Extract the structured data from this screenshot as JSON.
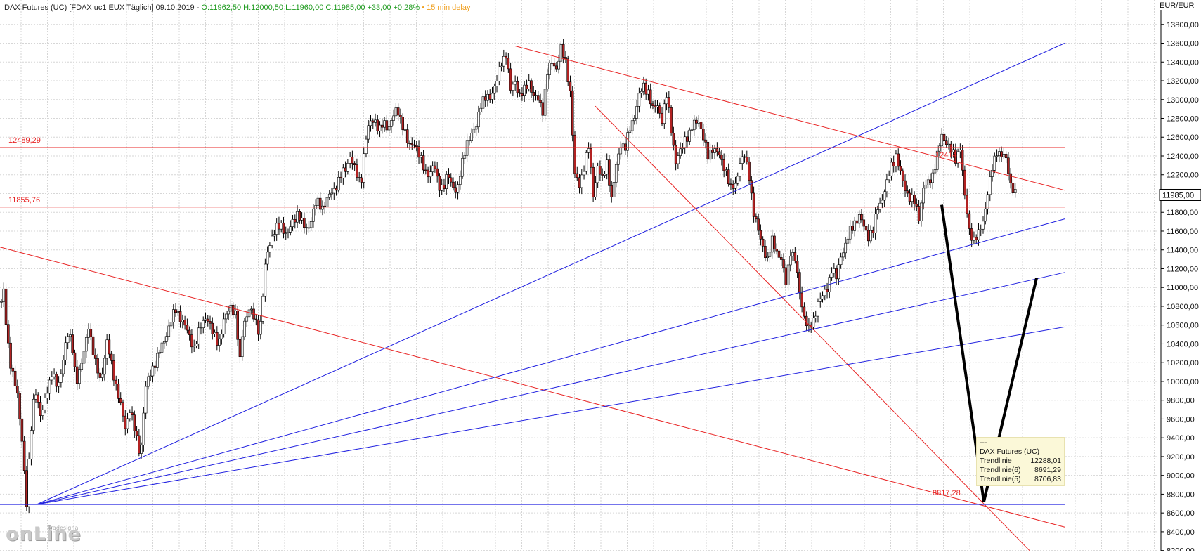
{
  "header": {
    "title": "DAX Futures (UC) [FDAX uc1 EUX Täglich] 09.10.2019 -",
    "ohlc": "O:11962,50 H:12000,50 L:11960,00 C:11985,00 +33,00 +0,28%",
    "delay": "• 15 min delay"
  },
  "colors": {
    "candle_up": "#ffffff",
    "candle_down": "#b22222",
    "wick": "#000000",
    "red_line": "#e82424",
    "blue_line": "#2020e0",
    "grid": "#d6d6d6",
    "projection": "#000000"
  },
  "chart_data": {
    "type": "candlestick",
    "y_axis_title": "EUR/EUR",
    "y_ticks": [
      8200,
      8400,
      8600,
      8800,
      9000,
      9200,
      9400,
      9600,
      9800,
      10000,
      10200,
      10400,
      10600,
      10800,
      11000,
      11200,
      11400,
      11600,
      11800,
      12000,
      12200,
      12400,
      12600,
      12800,
      13000,
      13200,
      13400,
      13600,
      13800
    ],
    "y_tick_labels": [
      "8200,00",
      "8400,00",
      "8600,00",
      "8800,00",
      "9000,00",
      "9200,00",
      "9400,00",
      "9600,00",
      "9800,00",
      "10000,00",
      "10200,00",
      "10400,00",
      "10600,00",
      "10800,00",
      "11000,00",
      "11200,00",
      "11400,00",
      "11600,00",
      "11800,00",
      "12000,00",
      "12200,00",
      "12400,00",
      "12600,00",
      "12800,00",
      "13000,00",
      "13200,00",
      "13400,00",
      "13600,00",
      "13800,00"
    ],
    "ylim": [
      8190,
      14060
    ],
    "grid": true,
    "last_price": 11985,
    "last_price_label": "11985,00",
    "price_path": [
      [
        0,
        10850
      ],
      [
        3,
        10950
      ],
      [
        7,
        10500
      ],
      [
        12,
        10200
      ],
      [
        20,
        9900
      ],
      [
        28,
        9300
      ],
      [
        33,
        8700
      ],
      [
        38,
        9400
      ],
      [
        44,
        9950
      ],
      [
        52,
        9600
      ],
      [
        60,
        9900
      ],
      [
        66,
        10100
      ],
      [
        74,
        9900
      ],
      [
        80,
        10200
      ],
      [
        86,
        10500
      ],
      [
        92,
        10400
      ],
      [
        98,
        10000
      ],
      [
        106,
        10200
      ],
      [
        114,
        10600
      ],
      [
        122,
        10200
      ],
      [
        130,
        10000
      ],
      [
        138,
        10400
      ],
      [
        146,
        10100
      ],
      [
        154,
        9800
      ],
      [
        162,
        9500
      ],
      [
        168,
        9700
      ],
      [
        176,
        9400
      ],
      [
        182,
        9200
      ],
      [
        188,
        9900
      ],
      [
        196,
        10100
      ],
      [
        204,
        10250
      ],
      [
        212,
        10400
      ],
      [
        220,
        10600
      ],
      [
        228,
        10750
      ],
      [
        236,
        10650
      ],
      [
        244,
        10500
      ],
      [
        252,
        10350
      ],
      [
        260,
        10550
      ],
      [
        268,
        10700
      ],
      [
        276,
        10500
      ],
      [
        284,
        10400
      ],
      [
        292,
        10650
      ],
      [
        300,
        10800
      ],
      [
        306,
        10700
      ],
      [
        312,
        10200
      ],
      [
        316,
        10600
      ],
      [
        324,
        10750
      ],
      [
        332,
        10650
      ],
      [
        338,
        10500
      ],
      [
        342,
        10900
      ],
      [
        346,
        11300
      ],
      [
        352,
        11500
      ],
      [
        358,
        11600
      ],
      [
        366,
        11650
      ],
      [
        374,
        11550
      ],
      [
        382,
        11700
      ],
      [
        388,
        11800
      ],
      [
        394,
        11650
      ],
      [
        400,
        11600
      ],
      [
        406,
        11750
      ],
      [
        412,
        11900
      ],
      [
        420,
        11850
      ],
      [
        428,
        11950
      ],
      [
        436,
        12050
      ],
      [
        442,
        12150
      ],
      [
        450,
        12250
      ],
      [
        456,
        12400
      ],
      [
        464,
        12200
      ],
      [
        470,
        12100
      ],
      [
        476,
        12550
      ],
      [
        482,
        12750
      ],
      [
        488,
        12800
      ],
      [
        494,
        12650
      ],
      [
        500,
        12750
      ],
      [
        506,
        12700
      ],
      [
        512,
        12800
      ],
      [
        518,
        12900
      ],
      [
        526,
        12700
      ],
      [
        532,
        12500
      ],
      [
        540,
        12550
      ],
      [
        546,
        12400
      ],
      [
        554,
        12250
      ],
      [
        560,
        12200
      ],
      [
        566,
        12300
      ],
      [
        572,
        12100
      ],
      [
        578,
        12050
      ],
      [
        584,
        12200
      ],
      [
        590,
        12100
      ],
      [
        596,
        12000
      ],
      [
        602,
        12300
      ],
      [
        608,
        12550
      ],
      [
        614,
        12600
      ],
      [
        620,
        12700
      ],
      [
        626,
        12950
      ],
      [
        632,
        13000
      ],
      [
        640,
        13050
      ],
      [
        648,
        13200
      ],
      [
        654,
        13400
      ],
      [
        660,
        13500
      ],
      [
        666,
        13100
      ],
      [
        672,
        13200
      ],
      [
        678,
        13050
      ],
      [
        684,
        13100
      ],
      [
        690,
        13200
      ],
      [
        696,
        13050
      ],
      [
        702,
        13000
      ],
      [
        708,
        12900
      ],
      [
        714,
        13300
      ],
      [
        720,
        13400
      ],
      [
        726,
        13350
      ],
      [
        732,
        13550
      ],
      [
        738,
        13400
      ],
      [
        744,
        13100
      ],
      [
        750,
        12200
      ],
      [
        756,
        12100
      ],
      [
        762,
        12300
      ],
      [
        768,
        12500
      ],
      [
        774,
        12000
      ],
      [
        780,
        12300
      ],
      [
        786,
        12150
      ],
      [
        792,
        12350
      ],
      [
        798,
        11950
      ],
      [
        804,
        12300
      ],
      [
        810,
        12550
      ],
      [
        816,
        12500
      ],
      [
        822,
        12700
      ],
      [
        828,
        12850
      ],
      [
        834,
        13050
      ],
      [
        840,
        13150
      ],
      [
        846,
        13100
      ],
      [
        852,
        12900
      ],
      [
        858,
        12950
      ],
      [
        864,
        12800
      ],
      [
        870,
        13050
      ],
      [
        876,
        12700
      ],
      [
        882,
        12350
      ],
      [
        888,
        12450
      ],
      [
        894,
        12600
      ],
      [
        900,
        12650
      ],
      [
        906,
        12750
      ],
      [
        912,
        12800
      ],
      [
        918,
        12600
      ],
      [
        924,
        12400
      ],
      [
        930,
        12500
      ],
      [
        936,
        12450
      ],
      [
        942,
        12350
      ],
      [
        948,
        12250
      ],
      [
        954,
        12050
      ],
      [
        960,
        12100
      ],
      [
        966,
        12350
      ],
      [
        972,
        12400
      ],
      [
        978,
        12200
      ],
      [
        984,
        11800
      ],
      [
        990,
        11600
      ],
      [
        996,
        11450
      ],
      [
        1002,
        11300
      ],
      [
        1008,
        11500
      ],
      [
        1014,
        11400
      ],
      [
        1020,
        11300
      ],
      [
        1026,
        11050
      ],
      [
        1032,
        11400
      ],
      [
        1038,
        11300
      ],
      [
        1044,
        10950
      ],
      [
        1050,
        10700
      ],
      [
        1056,
        10550
      ],
      [
        1062,
        10650
      ],
      [
        1068,
        10850
      ],
      [
        1074,
        10900
      ],
      [
        1080,
        11000
      ],
      [
        1086,
        11200
      ],
      [
        1092,
        11100
      ],
      [
        1098,
        11350
      ],
      [
        1104,
        11450
      ],
      [
        1110,
        11600
      ],
      [
        1116,
        11700
      ],
      [
        1122,
        11750
      ],
      [
        1128,
        11650
      ],
      [
        1134,
        11550
      ],
      [
        1140,
        11600
      ],
      [
        1146,
        11850
      ],
      [
        1152,
        11950
      ],
      [
        1158,
        12100
      ],
      [
        1164,
        12300
      ],
      [
        1170,
        12400
      ],
      [
        1176,
        12200
      ],
      [
        1182,
        12050
      ],
      [
        1188,
        11950
      ],
      [
        1194,
        11900
      ],
      [
        1200,
        11750
      ],
      [
        1206,
        12050
      ],
      [
        1212,
        12100
      ],
      [
        1218,
        12200
      ],
      [
        1224,
        12400
      ],
      [
        1230,
        12600
      ],
      [
        1236,
        12550
      ],
      [
        1242,
        12450
      ],
      [
        1248,
        12350
      ],
      [
        1254,
        12500
      ],
      [
        1260,
        11950
      ],
      [
        1266,
        11600
      ],
      [
        1272,
        11500
      ],
      [
        1278,
        11550
      ],
      [
        1284,
        11700
      ],
      [
        1290,
        12000
      ],
      [
        1296,
        12250
      ],
      [
        1302,
        12450
      ],
      [
        1308,
        12400
      ],
      [
        1314,
        12350
      ],
      [
        1320,
        12100
      ],
      [
        1326,
        11985
      ]
    ],
    "red_lines": [
      {
        "x": [
          0,
          1515
        ],
        "y": [
          12489.29,
          12489.29
        ],
        "label": "12489,29"
      },
      {
        "x": [
          0,
          1515
        ],
        "y": [
          11855.76,
          11855.76
        ],
        "label": "11855,76"
      },
      {
        "x": [
          733,
          1515
        ],
        "y": [
          13570,
          12035
        ]
      },
      {
        "x": [
          0,
          1515
        ],
        "y": [
          11430,
          8450
        ]
      },
      {
        "x": [
          847,
          1465
        ],
        "y": [
          12930,
          8200
        ]
      }
    ],
    "blue_lines": [
      {
        "x": [
          0,
          1515
        ],
        "y": [
          8690,
          8690
        ]
      },
      {
        "x": [
          52,
          1515
        ],
        "y": [
          8690,
          13600
        ]
      },
      {
        "x": [
          52,
          1515
        ],
        "y": [
          8690,
          11730
        ]
      },
      {
        "x": [
          52,
          1515
        ],
        "y": [
          8690,
          11160
        ]
      },
      {
        "x": [
          52,
          1515
        ],
        "y": [
          8690,
          10580
        ]
      }
    ],
    "projection": {
      "x": [
        1340,
        1400,
        1475
      ],
      "y": [
        11880,
        8720,
        11100
      ]
    },
    "annotations": [
      {
        "text": "12414",
        "x": 1331,
        "y": 12414
      },
      {
        "text": "8817,28",
        "x": 1327,
        "y": 8817.28
      }
    ]
  },
  "tooltip": {
    "dash": "---",
    "title": "DAX Futures (UC)",
    "rows": [
      {
        "label": "Trendlinie",
        "value": "12288,01"
      },
      {
        "label": "Trendlinie(6)",
        "value": "8691,29"
      },
      {
        "label": "Trendlinie(5)",
        "value": "8706,83"
      }
    ]
  },
  "logo": {
    "text": "onLine",
    "subtext": "Tradesignal"
  }
}
